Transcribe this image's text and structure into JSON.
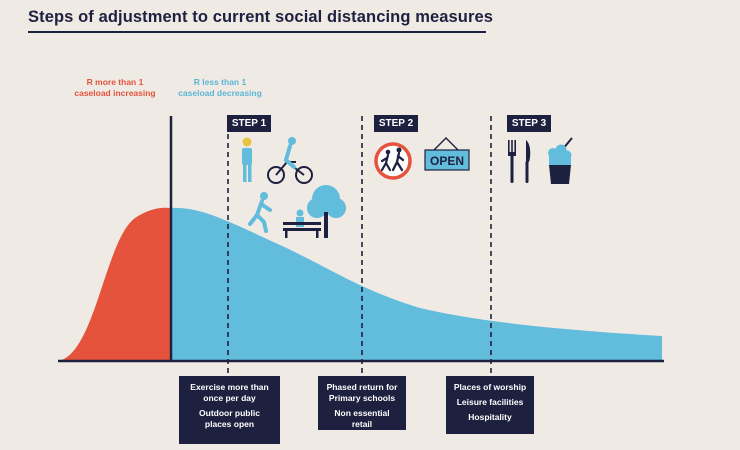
{
  "title": "Steps of adjustment to current social distancing measures",
  "labels": {
    "r_more_line1": "R more than 1",
    "r_more_line2": "caseload increasing",
    "r_less_line1": "R less than 1",
    "r_less_line2": "caseload decreasing"
  },
  "steps": [
    {
      "label": "STEP 1",
      "items": [
        "Exercise more than once per day",
        "Outdoor public places open"
      ]
    },
    {
      "label": "STEP 2",
      "items": [
        "Phased return for Primary schools",
        "Non essential retail"
      ]
    },
    {
      "label": "STEP 3",
      "items": [
        "Places of worship",
        "Leisure facilities",
        "Hospitality"
      ]
    }
  ],
  "sign": {
    "text": "OPEN"
  },
  "colors": {
    "navy": "#1e2040",
    "red": "#e5533d",
    "blue": "#62bcdc",
    "background": "#efeae4"
  },
  "icons": [
    "standing-person-icon",
    "cyclist-icon",
    "runner-icon",
    "park-bench-icon",
    "tree-icon",
    "children-crossing-icon",
    "open-sign-icon",
    "fork-icon",
    "knife-icon",
    "drink-cup-icon"
  ]
}
